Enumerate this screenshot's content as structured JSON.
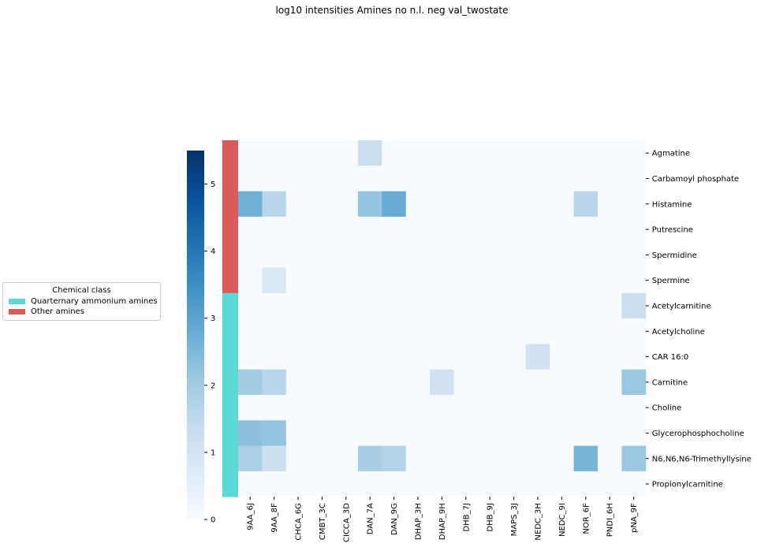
{
  "chart_data": {
    "type": "heatmap",
    "title": "log10 intensities Amines no n.l. neg val_twostate",
    "columns": [
      "9AA_6J",
      "9AA_8F",
      "CHCA_6G",
      "CMBT_3C",
      "CICCA_3D",
      "DAN_7A",
      "DAN_9G",
      "DHAP_3H",
      "DHAP_9H",
      "DHB_7J",
      "DHB_9J",
      "MAPS_3J",
      "NEDC_3H",
      "NEDC_9I",
      "NOR_6F",
      "PNDI_6H",
      "pNA_9F"
    ],
    "rows": [
      "Agmatine",
      "Carbamoyl phosphate",
      "Histamine",
      "Putrescine",
      "Spermidine",
      "Spermine",
      "Acetylcarnitine",
      "Acetylcholine",
      "CAR 16:0",
      "Carnitine",
      "Choline",
      "Glycerophosphocholine",
      "N6,N6,N6-Trimethyllysine",
      "Propionylcarnitine"
    ],
    "values": [
      [
        0,
        0,
        0,
        0,
        0,
        1.2,
        0,
        0,
        0,
        0,
        0,
        0,
        0,
        0,
        0,
        0,
        0
      ],
      [
        0,
        0,
        0,
        0,
        0,
        0,
        0,
        0,
        0,
        0,
        0,
        0,
        0,
        0,
        0,
        0,
        0
      ],
      [
        2.7,
        1.6,
        0,
        0,
        0,
        2.2,
        2.8,
        0,
        0,
        0,
        0,
        0,
        0,
        0,
        1.6,
        0,
        0
      ],
      [
        0,
        0,
        0,
        0,
        0,
        0,
        0,
        0,
        0,
        0,
        0,
        0,
        0,
        0,
        0,
        0,
        0
      ],
      [
        0,
        0,
        0,
        0,
        0,
        0,
        0,
        0,
        0,
        0,
        0,
        0,
        0,
        0,
        0,
        0,
        0
      ],
      [
        0,
        0.8,
        0,
        0,
        0,
        0,
        0,
        0,
        0,
        0,
        0,
        0,
        0,
        0,
        0,
        0,
        0
      ],
      [
        0,
        0,
        0,
        0,
        0,
        0,
        0,
        0,
        0,
        0,
        0,
        0,
        0,
        0,
        0,
        0,
        1.2
      ],
      [
        0,
        0,
        0,
        0,
        0,
        0,
        0,
        0,
        0,
        0,
        0,
        0,
        0,
        0,
        0,
        0,
        0
      ],
      [
        0,
        0,
        0,
        0,
        0,
        0,
        0,
        0,
        0,
        0,
        0,
        0,
        1.1,
        0,
        0,
        0,
        0
      ],
      [
        2.0,
        1.6,
        0,
        0,
        0,
        0,
        0,
        0,
        1.1,
        0,
        0,
        0,
        0,
        0,
        0,
        0,
        2.1
      ],
      [
        0,
        0,
        0,
        0,
        0,
        0,
        0,
        0,
        0,
        0,
        0,
        0,
        0,
        0,
        0,
        0,
        0
      ],
      [
        2.3,
        2.2,
        0,
        0,
        0,
        0,
        0,
        0,
        0,
        0,
        0,
        0,
        0,
        0,
        0,
        0,
        0
      ],
      [
        1.8,
        1.2,
        0,
        0,
        0,
        1.9,
        1.7,
        0,
        0,
        0,
        0,
        0,
        0,
        0,
        2.6,
        0,
        2.1
      ],
      [
        0,
        0,
        0,
        0,
        0,
        0,
        0,
        0,
        0,
        0,
        0,
        0,
        0,
        0,
        0,
        0,
        0
      ]
    ],
    "row_classes": [
      "Other amines",
      "Other amines",
      "Other amines",
      "Other amines",
      "Other amines",
      "Other amines",
      "Quarternary ammonium amines",
      "Quarternary ammonium amines",
      "Quarternary ammonium amines",
      "Quarternary ammonium amines",
      "Quarternary ammonium amines",
      "Quarternary ammonium amines",
      "Quarternary ammonium amines",
      "Quarternary ammonium amines"
    ],
    "colorbar": {
      "min": 0,
      "max": 5.5,
      "ticks": [
        0,
        1,
        2,
        3,
        4,
        5
      ],
      "colormap": "Blues"
    },
    "legend": {
      "title": "Chemical class",
      "placement": "left",
      "entries": [
        {
          "label": "Quarternary ammonium amines",
          "color": "#5bd9d5"
        },
        {
          "label": "Other amines",
          "color": "#dd5a5b"
        }
      ]
    }
  }
}
